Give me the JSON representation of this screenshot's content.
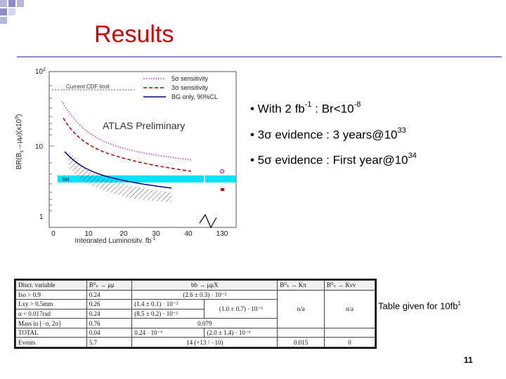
{
  "slide": {
    "title": "Results",
    "page_number": "11",
    "accent_colors": {
      "title": "#cc0000",
      "corner_squares": "#9999cc",
      "rule": "#8a8ac8"
    }
  },
  "plot": {
    "y_label": "BR(B",
    "y_label_sub": "s",
    "y_label_rest": "→μμ)(x10",
    "y_label_exp": "9",
    "y_label_end": ")",
    "y_ticks": [
      {
        "base": "10",
        "exp": "2"
      },
      {
        "base": "10",
        "exp": ""
      },
      {
        "base": "1",
        "exp": ""
      }
    ],
    "x_ticks": [
      "0",
      "10",
      "20",
      "30",
      "40",
      "130"
    ],
    "x_label": "Integrated Luminosity, fb",
    "x_label_exp": "-1",
    "watermark": "ATLAS Preliminary",
    "cdf_label": "Current CDF limit",
    "sm_label": "SM",
    "legend": [
      {
        "label": "5σ sensitivity",
        "color": "#d040b0",
        "style": "dotted"
      },
      {
        "label": "3σ sensitivity",
        "color": "#b00000",
        "style": "dashed"
      },
      {
        "label": "BG only, 90%CL",
        "color": "#000080",
        "style": "solid"
      }
    ]
  },
  "bullets": [
    {
      "prefix": "• With 2 fb",
      "sup1": "-1",
      "middle": " :  Br<10",
      "sup2": "-8"
    },
    {
      "prefix": "• 3σ evidence : 3 years@10",
      "sup1": "33",
      "middle": "",
      "sup2": ""
    },
    {
      "prefix": "• 5σ evidence : First year@10",
      "sup1": "34",
      "middle": "",
      "sup2": ""
    }
  ],
  "table": {
    "headers": [
      "Discr. variable",
      "B⁰ₛ → μμ",
      "bb → μμX",
      "",
      "B⁰ₛ → Kπ",
      "B⁰ₛ → Kνν"
    ],
    "rows": [
      [
        "Iso > 0.9",
        "0.24",
        "(2.6 ± 0.3) · 10⁻²",
        "",
        "",
        ""
      ],
      [
        "Lxy > 0.5mm",
        "0.26",
        "(1.4 ± 0.1) · 10⁻²",
        "(1.0 ± 0.7) · 10⁻³",
        "n/a",
        "n/a"
      ],
      [
        "α < 0.017rad",
        "0.24",
        "(8.5 ± 0.2) · 10⁻²",
        "",
        "",
        ""
      ],
      [
        "Mass in [−σ, 2σ]",
        "0.76",
        "0.079",
        "",
        "",
        ""
      ],
      [
        "TOTAL",
        "0.04",
        "0.24 · 10⁻⁶",
        "(2.0 ± 1.4) · 10⁻⁶",
        "",
        ""
      ],
      [
        "Events",
        "5.7",
        "",
        "14 (+13 / −10)",
        "0.015",
        "0"
      ]
    ],
    "note": "Table given for 10fb",
    "note_sup": "1"
  }
}
